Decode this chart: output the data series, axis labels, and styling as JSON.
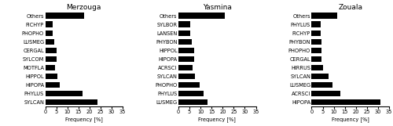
{
  "merzouga": {
    "title": "Merzouga",
    "labels": [
      "Others",
      "FICHYP",
      "PHOPHO",
      "LUSMEG",
      "CERGAL",
      "SYLCOM",
      "MOTFLA",
      "HIPPOL",
      "HIPOPA",
      "PHYLUS",
      "SYLCAN"
    ],
    "values": [
      17.5,
      3.5,
      3.5,
      4.0,
      5.0,
      5.0,
      4.5,
      5.5,
      6.5,
      17.0,
      23.5
    ]
  },
  "yasmina": {
    "title": "Yasmina",
    "labels": [
      "Others",
      "SYLBOR",
      "LANSEN",
      "PHYBON",
      "HIPPOL",
      "HIPOPA",
      "ACRSCI",
      "SYLCAN",
      "PHOPHO",
      "PHYLUS",
      "LUSMEG"
    ],
    "values": [
      21.0,
      5.5,
      5.5,
      6.0,
      7.0,
      7.0,
      6.5,
      7.5,
      9.5,
      11.5,
      13.0
    ]
  },
  "zouala": {
    "title": "Zouala",
    "labels": [
      "Others",
      "PHYLUS",
      "FICHYP",
      "PHYBON",
      "PHOPHO",
      "CERGAL",
      "HIRRUS",
      "SYLCAN",
      "LUSMEG",
      "ACRSCI",
      "HIPOPA"
    ],
    "values": [
      11.5,
      4.0,
      4.0,
      4.5,
      4.5,
      4.5,
      5.0,
      7.5,
      9.5,
      13.0,
      31.0
    ]
  },
  "bar_color": "#000000",
  "xlabel": "Frequency [%]",
  "xlim": [
    0,
    35
  ],
  "xticks": [
    0,
    5,
    10,
    15,
    20,
    25,
    30,
    35
  ],
  "title_fontsize": 6.5,
  "label_fontsize": 4.8,
  "tick_fontsize": 4.8,
  "bar_height": 0.65
}
